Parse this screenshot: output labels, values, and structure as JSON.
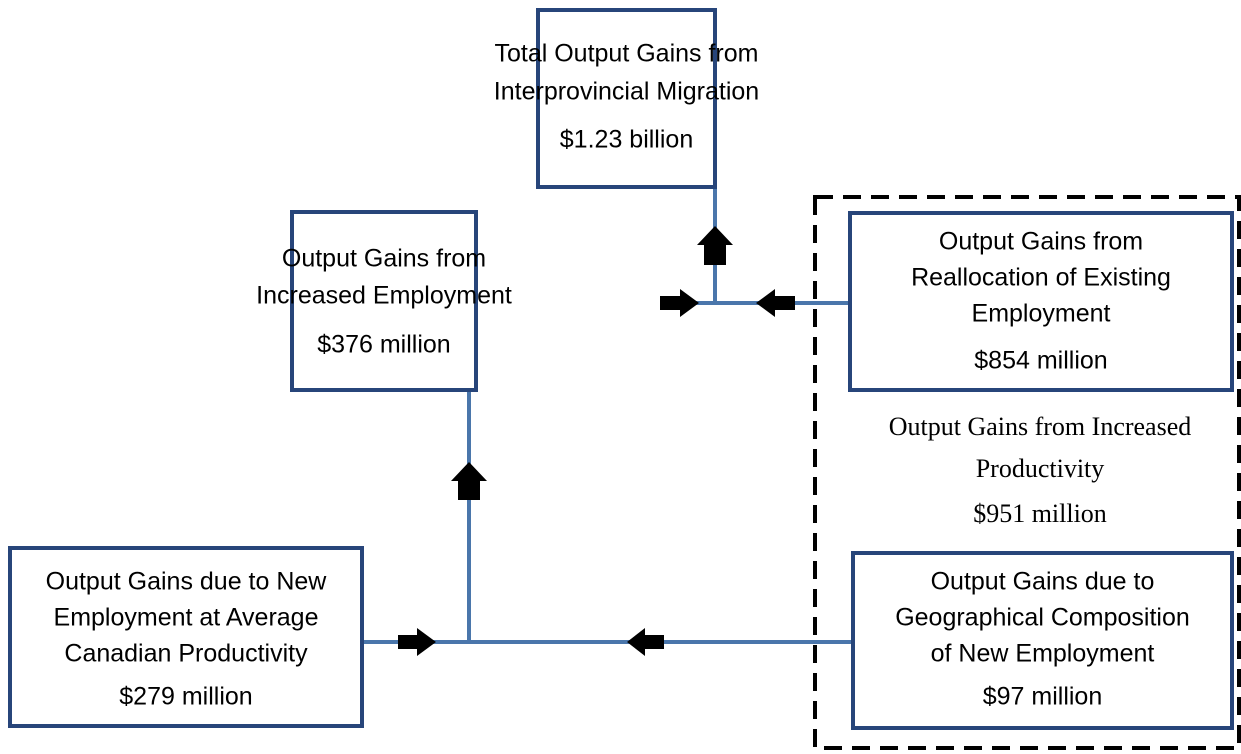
{
  "nodes": [
    {
      "lines": [
        "Total Output Gains from",
        "Interprovincial Migration"
      ],
      "value": "$1.23 billion"
    },
    {
      "lines": [
        "Output Gains from",
        "Increased Employment"
      ],
      "value": "$376 million"
    },
    {
      "lines": [
        "Output Gains from",
        "Reallocation of Existing",
        "Employment"
      ],
      "value": "$854 million"
    },
    {
      "lines": [
        "Output Gains due to New",
        "Employment at Average",
        "Canadian Productivity"
      ],
      "value": "$279 million"
    },
    {
      "lines": [
        "Output Gains due to",
        "Geographical Composition",
        "of New Employment"
      ],
      "value": "$97 million"
    }
  ],
  "group": {
    "lines": [
      "Output Gains from Increased",
      "Productivity"
    ],
    "value": "$951 million"
  }
}
